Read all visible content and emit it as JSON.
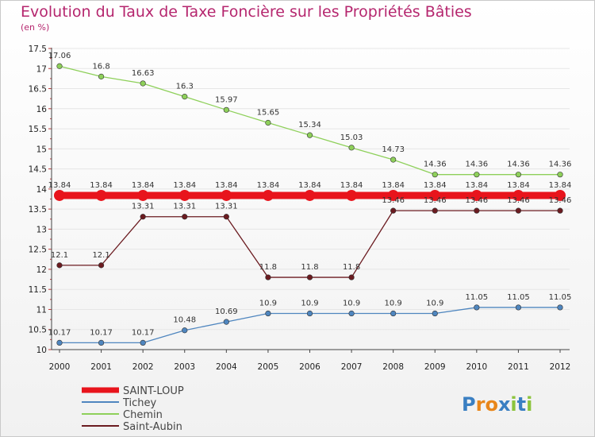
{
  "chart_data": {
    "type": "line",
    "title": "Evolution du Taux de Taxe Foncière sur les Propriétés Bâties",
    "unit_label": "(en %)",
    "xlabel": "",
    "ylabel": "",
    "x": [
      "2000",
      "2001",
      "2002",
      "2003",
      "2004",
      "2005",
      "2006",
      "2007",
      "2008",
      "2009",
      "2010",
      "2011",
      "2012"
    ],
    "ylim": [
      10,
      17.5
    ],
    "yticks": [
      "10",
      "10.5",
      "11",
      "11.5",
      "12",
      "12.5",
      "13",
      "13.5",
      "14",
      "14.5",
      "15",
      "15.5",
      "16",
      "16.5",
      "17",
      "17.5"
    ],
    "grid": "horizontal",
    "legend_position": "bottom-left",
    "series": [
      {
        "name": "SAINT-LOUP",
        "color": "#e8141c",
        "values": [
          13.84,
          13.84,
          13.84,
          13.84,
          13.84,
          13.84,
          13.84,
          13.84,
          13.84,
          13.84,
          13.84,
          13.84,
          13.84
        ],
        "labels": [
          "13.84",
          "13.84",
          "13.84",
          "13.84",
          "13.84",
          "13.84",
          "13.84",
          "13.84",
          "13.84",
          "13.84",
          "13.84",
          "13.84",
          "13.84"
        ]
      },
      {
        "name": "Tichey",
        "color": "#4f86bf",
        "values": [
          10.17,
          10.17,
          10.17,
          10.48,
          10.69,
          10.9,
          10.9,
          10.9,
          10.9,
          10.9,
          11.05,
          11.05,
          11.05
        ],
        "labels": [
          "10.17",
          "10.17",
          "10.17",
          "10.48",
          "10.69",
          "10.9",
          "10.9",
          "10.9",
          "10.9",
          "10.9",
          "11.05",
          "11.05",
          "11.05"
        ]
      },
      {
        "name": "Chemin",
        "color": "#8ed05a",
        "values": [
          17.06,
          16.8,
          16.63,
          16.3,
          15.97,
          15.65,
          15.34,
          15.03,
          14.73,
          14.36,
          14.36,
          14.36,
          14.36
        ],
        "labels": [
          "17.06",
          "16.8",
          "16.63",
          "16.3",
          "15.97",
          "15.65",
          "15.34",
          "15.03",
          "14.73",
          "14.36",
          "14.36",
          "14.36",
          "14.36"
        ]
      },
      {
        "name": "Saint-Aubin",
        "color": "#6b1b20",
        "values": [
          12.1,
          12.1,
          13.31,
          13.31,
          13.31,
          11.8,
          11.8,
          11.8,
          13.46,
          13.46,
          13.46,
          13.46,
          13.46
        ],
        "labels": [
          "12.1",
          "12.1",
          "13.31",
          "13.31",
          "13.31",
          "11.8",
          "11.8",
          "11.8",
          "13.46",
          "13.46",
          "13.46",
          "13.46",
          "13.46"
        ]
      }
    ]
  },
  "logo": {
    "text": "Proxiti"
  }
}
